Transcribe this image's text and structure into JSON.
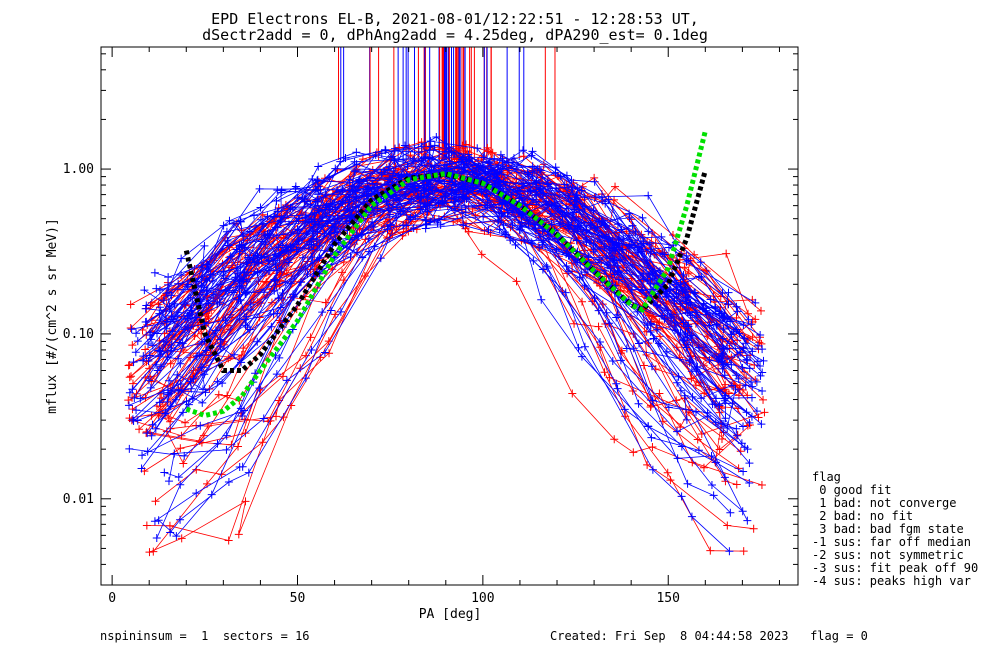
{
  "chart_data": {
    "type": "scatter",
    "title_line1": "EPD Electrons EL-B, 2021-08-01/12:22:51 - 12:28:53 UT,",
    "title_line2": "dSectr2add = 0, dPhAng2add = 4.25deg, dPA290_est=   0.1deg",
    "xlabel": "PA [deg]",
    "ylabel": "mflux [#/(cm^2 s sr MeV)]",
    "xlim": [
      -3,
      185
    ],
    "ylim": [
      0.003,
      5.5
    ],
    "y_scale": "log",
    "x_ticks": [
      0,
      50,
      100,
      150
    ],
    "x_tick_labels": [
      "0",
      "50",
      "100",
      "150"
    ],
    "y_ticks": [
      0.01,
      0.1,
      1.0
    ],
    "y_tick_labels": [
      "0.01",
      "0.10",
      "1.00"
    ],
    "legend_title": "flag",
    "legend_entries": [
      " 0 good fit",
      " 1 bad: not converge",
      " 2 bad: no fit",
      " 3 bad: bad fgm state",
      "-1 sus: far off median",
      "-2 sus: not symmetric",
      "-3 sus: fit peak off 90",
      "-4 sus: peaks high var"
    ],
    "footer_left": "nspininsum =  1  sectors = 16",
    "footer_right": "Created: Fri Sep  8 04:44:58 2023   flag = 0",
    "series": [
      {
        "color": "#ff0000",
        "kind": "pitch-angle-distributions"
      },
      {
        "color": "#0000ff",
        "kind": "pitch-angle-distributions"
      },
      {
        "color": "#000000",
        "kind": "fit-curve",
        "style": "dotted",
        "x": [
          20,
          25,
          30,
          35,
          40,
          50,
          60,
          70,
          80,
          90,
          100,
          110,
          120,
          130,
          140,
          143,
          150,
          155,
          160
        ],
        "y": [
          0.32,
          0.1,
          0.06,
          0.06,
          0.075,
          0.15,
          0.35,
          0.65,
          0.88,
          0.93,
          0.82,
          0.6,
          0.4,
          0.24,
          0.15,
          0.14,
          0.2,
          0.38,
          0.98
        ]
      },
      {
        "color": "#00e000",
        "kind": "fit-curve",
        "style": "dotted",
        "x": [
          20,
          25,
          30,
          35,
          40,
          50,
          60,
          70,
          80,
          90,
          100,
          110,
          120,
          130,
          140,
          143,
          150,
          155,
          160
        ],
        "y": [
          0.035,
          0.032,
          0.034,
          0.042,
          0.06,
          0.12,
          0.3,
          0.6,
          0.86,
          0.94,
          0.82,
          0.6,
          0.4,
          0.24,
          0.15,
          0.14,
          0.25,
          0.6,
          1.7
        ]
      }
    ]
  }
}
